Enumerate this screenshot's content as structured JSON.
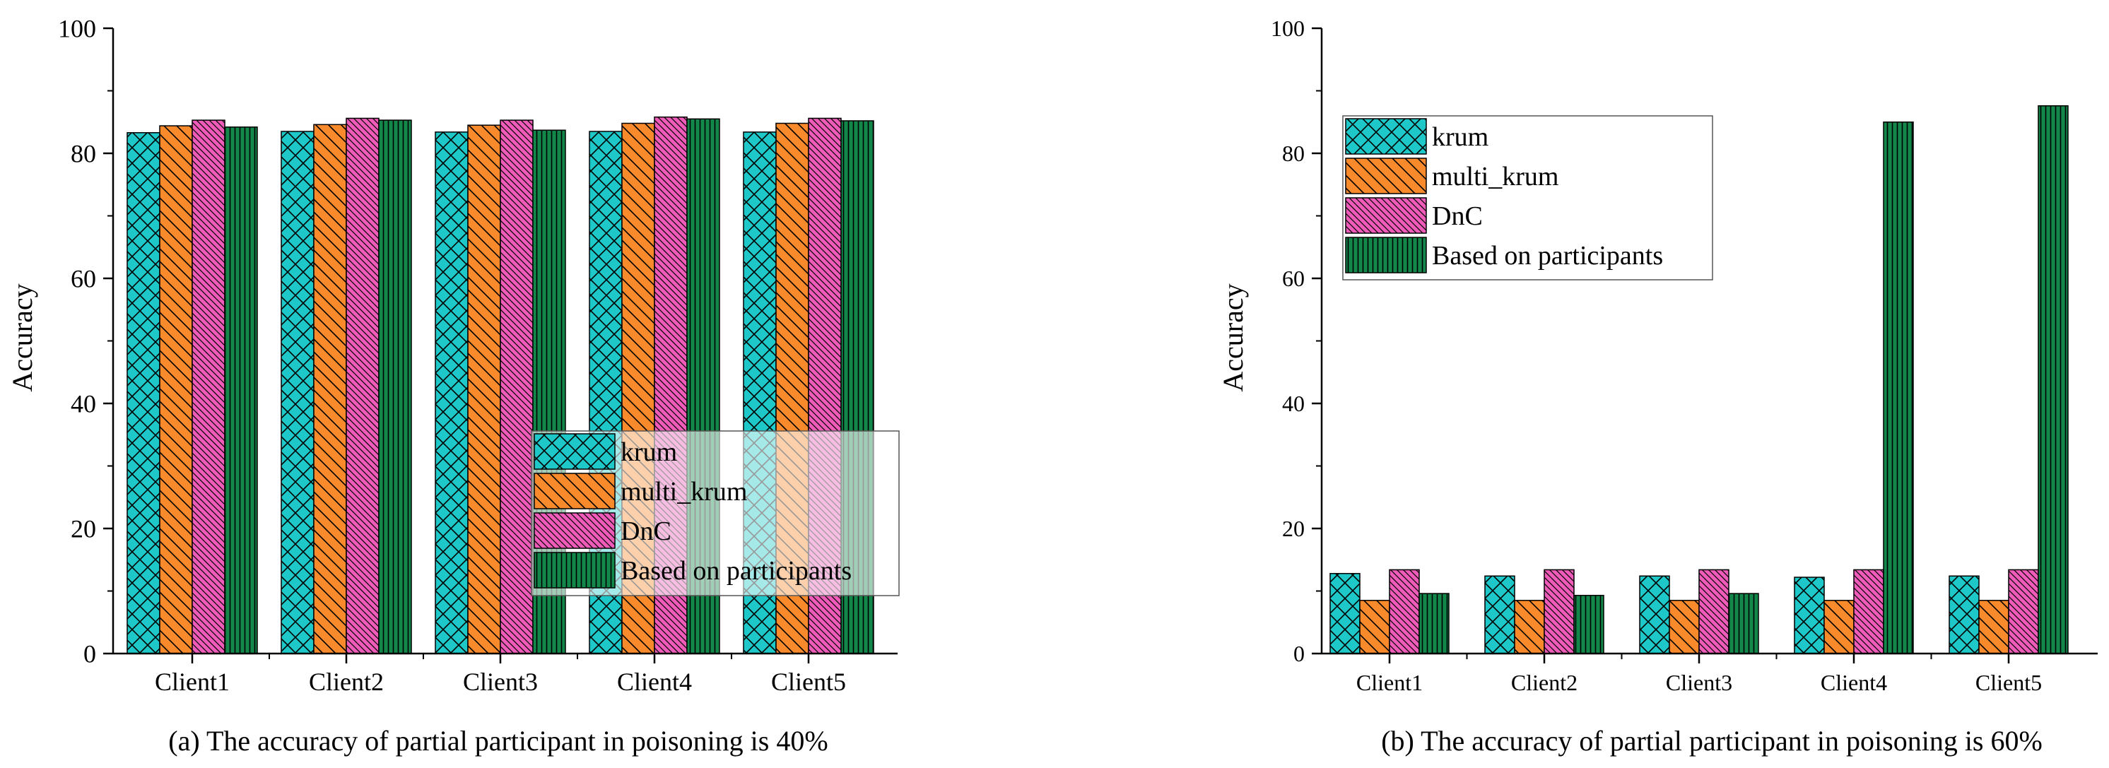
{
  "colors": {
    "krum": "#1fc8c8",
    "multi_krum": "#f88a2c",
    "DnC": "#ee5bb8",
    "Based on participants": "#13864a"
  },
  "chart_data": [
    {
      "type": "bar",
      "caption": "(a) The accuracy of partial participant in poisoning is 40%",
      "ylabel": "Accuracy",
      "xlabel": "",
      "ylim": [
        0,
        100
      ],
      "yticks": [
        0,
        20,
        40,
        60,
        80,
        100
      ],
      "categories": [
        "Client1",
        "Client2",
        "Client3",
        "Client4",
        "Client5"
      ],
      "legend_position": "bottom-right",
      "series": [
        {
          "name": "krum",
          "values": [
            83.3,
            83.5,
            83.4,
            83.5,
            83.4
          ]
        },
        {
          "name": "multi_krum",
          "values": [
            84.4,
            84.6,
            84.5,
            84.8,
            84.8
          ]
        },
        {
          "name": "DnC",
          "values": [
            85.3,
            85.6,
            85.3,
            85.8,
            85.6
          ]
        },
        {
          "name": "Based on participants",
          "values": [
            84.2,
            85.3,
            83.7,
            85.5,
            85.2
          ]
        }
      ]
    },
    {
      "type": "bar",
      "caption": "(b) The accuracy of partial participant in poisoning is 60%",
      "ylabel": "Accuracy",
      "xlabel": "",
      "ylim": [
        0,
        100
      ],
      "yticks": [
        0,
        20,
        40,
        60,
        80,
        100
      ],
      "categories": [
        "Client1",
        "Client2",
        "Client3",
        "Client4",
        "Client5"
      ],
      "legend_position": "top-left",
      "series": [
        {
          "name": "krum",
          "values": [
            12.8,
            12.4,
            12.4,
            12.2,
            12.4
          ]
        },
        {
          "name": "multi_krum",
          "values": [
            8.5,
            8.5,
            8.5,
            8.5,
            8.5
          ]
        },
        {
          "name": "DnC",
          "values": [
            13.4,
            13.4,
            13.4,
            13.4,
            13.4
          ]
        },
        {
          "name": "Based on participants",
          "values": [
            9.6,
            9.3,
            9.6,
            85.0,
            87.6
          ]
        }
      ]
    }
  ]
}
